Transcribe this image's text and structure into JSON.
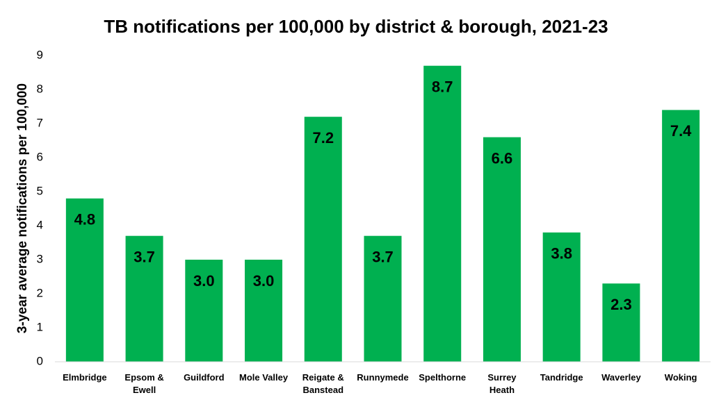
{
  "chart_data": {
    "type": "bar",
    "title": "TB notifications per 100,000 by district & borough, 2021-23",
    "y_label": "3-year average notifications per 100,000",
    "categories": [
      "Elmbridge",
      "Epsom & Ewell",
      "Guildford",
      "Mole Valley",
      "Reigate & Banstead",
      "Runnymede",
      "Spelthorne",
      "Surrey Heath",
      "Tandridge",
      "Waverley",
      "Woking"
    ],
    "values": [
      4.8,
      3.7,
      3.0,
      3.0,
      7.2,
      3.7,
      8.7,
      6.6,
      3.8,
      2.3,
      7.4
    ],
    "value_labels": [
      "4.8",
      "3.7",
      "3.0",
      "3.0",
      "7.2",
      "3.7",
      "8.7",
      "6.6",
      "3.8",
      "2.3",
      "7.4"
    ],
    "color": "#00b050",
    "ylim": [
      0,
      9
    ],
    "yticks": [
      0,
      1,
      2,
      3,
      4,
      5,
      6,
      7,
      8,
      9
    ],
    "grid": false
  }
}
